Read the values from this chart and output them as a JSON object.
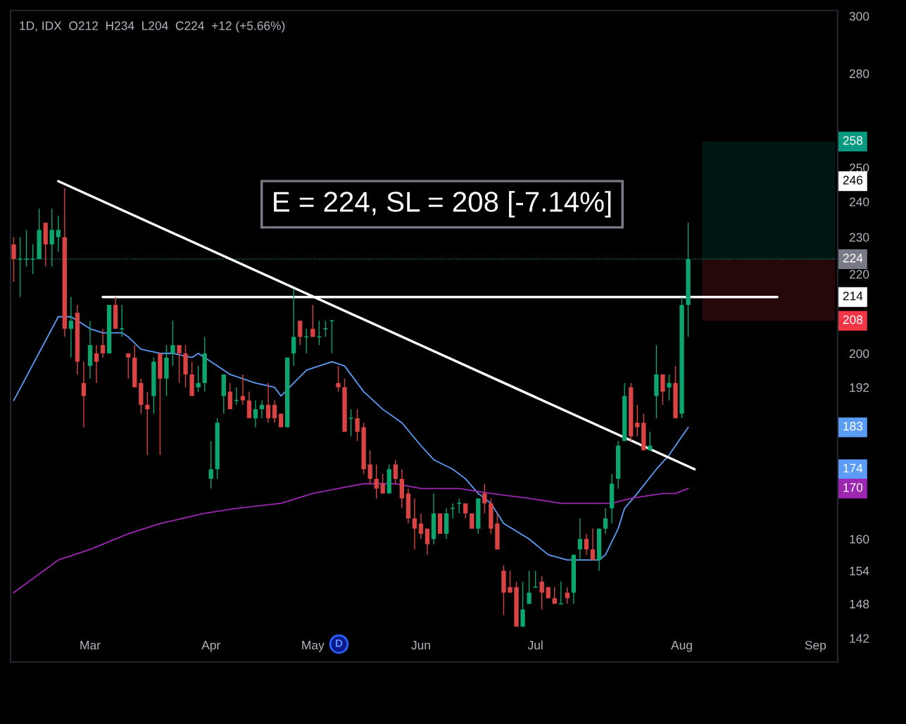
{
  "chart_data": {
    "type": "candlestick",
    "title": "1D, IDX  O212  H234  L204  C224  +12 (+5.66%)",
    "categories": [
      null,
      null,
      null,
      null,
      null,
      null,
      null,
      null,
      null,
      null,
      null,
      null,
      "Mar",
      null,
      null,
      null,
      null,
      null,
      null,
      null,
      null,
      null,
      null,
      null,
      null,
      null,
      null,
      null,
      null,
      null,
      null,
      "Apr",
      null,
      null,
      null,
      null,
      null,
      null,
      null,
      null,
      null,
      null,
      null,
      null,
      null,
      null,
      null,
      "May",
      null,
      null,
      null,
      null,
      null,
      null,
      null,
      null,
      null,
      null,
      null,
      null,
      null,
      null,
      null,
      null,
      "Jun",
      null,
      null,
      null,
      null,
      null,
      null,
      null,
      null,
      null,
      null,
      null,
      null,
      null,
      null,
      null,
      null,
      null,
      "Jul",
      null,
      null,
      null,
      null,
      null,
      null,
      null,
      null,
      null,
      null,
      null,
      null,
      null,
      null,
      null,
      null,
      null,
      null,
      null,
      null,
      null,
      null,
      "Aug",
      null,
      null,
      null,
      null,
      null,
      null,
      null,
      null,
      null,
      null,
      null,
      null,
      null,
      null,
      null,
      null,
      null,
      null,
      null,
      null,
      "Sep",
      null,
      null,
      null
    ],
    "ohlc": [
      [
        228,
        230,
        218,
        224
      ],
      [
        224,
        230,
        214,
        224
      ],
      [
        224,
        232,
        222,
        224
      ],
      [
        224,
        228,
        220,
        224
      ],
      [
        224,
        238,
        224,
        232
      ],
      [
        234,
        234,
        222,
        228
      ],
      [
        228,
        238,
        222,
        232
      ],
      [
        230,
        236,
        226,
        232
      ],
      [
        230,
        244,
        204,
        206
      ],
      [
        206,
        214,
        199,
        208
      ],
      [
        210,
        212,
        195,
        198
      ],
      [
        193,
        198,
        183,
        190
      ],
      [
        197,
        208,
        194,
        202
      ],
      [
        200,
        202,
        193,
        198
      ],
      [
        202,
        206,
        199,
        200
      ],
      [
        200,
        212,
        200,
        212
      ],
      [
        212,
        214,
        206,
        206
      ],
      [
        206,
        212,
        204,
        206
      ],
      [
        200,
        200,
        194,
        199
      ],
      [
        199,
        202,
        192,
        192
      ],
      [
        193,
        194,
        186,
        188
      ],
      [
        188,
        191,
        177,
        187
      ],
      [
        190,
        199,
        186,
        198
      ],
      [
        200,
        200,
        177,
        194
      ],
      [
        194,
        202,
        190,
        199
      ],
      [
        200,
        208,
        197,
        202
      ],
      [
        202,
        202,
        193,
        200
      ],
      [
        200,
        202,
        192,
        195
      ],
      [
        195,
        198,
        190,
        190
      ],
      [
        192,
        197,
        191,
        193
      ],
      [
        193,
        204,
        191,
        200
      ],
      [
        172,
        180,
        170,
        174
      ],
      [
        174,
        185,
        172,
        184
      ],
      [
        190,
        195,
        186,
        195
      ],
      [
        191,
        193,
        187,
        187
      ],
      [
        189,
        192,
        188,
        189
      ],
      [
        190,
        195,
        188,
        189
      ],
      [
        189,
        191,
        185,
        185
      ],
      [
        185,
        189,
        183,
        187
      ],
      [
        187,
        189,
        185,
        188
      ],
      [
        188,
        193,
        184,
        185
      ],
      [
        188,
        189,
        184,
        185
      ],
      [
        186,
        186,
        183,
        183
      ],
      [
        183,
        199,
        183,
        199
      ],
      [
        200,
        216,
        197,
        204
      ],
      [
        208,
        208,
        202,
        204
      ],
      [
        204,
        206,
        200,
        204
      ],
      [
        206,
        212,
        204,
        204
      ],
      [
        204,
        208,
        202,
        204
      ],
      [
        206,
        208,
        204,
        206
      ],
      [
        208,
        208,
        200,
        208
      ],
      [
        193,
        197,
        191,
        192
      ],
      [
        192,
        194,
        182,
        182
      ],
      [
        185,
        187,
        181,
        185
      ],
      [
        185,
        187,
        180,
        182
      ],
      [
        183,
        184,
        173,
        174
      ],
      [
        175,
        178,
        171,
        172
      ],
      [
        172,
        175,
        168,
        170
      ],
      [
        171,
        173,
        169,
        169
      ],
      [
        169,
        175,
        169,
        174
      ],
      [
        175,
        176,
        171,
        172
      ],
      [
        172,
        174,
        166,
        168
      ],
      [
        169,
        170,
        163,
        164
      ],
      [
        164,
        168,
        158,
        162
      ],
      [
        163,
        165,
        160,
        161
      ],
      [
        162,
        162,
        157,
        159
      ],
      [
        160,
        169,
        159,
        165
      ],
      [
        165,
        165,
        161,
        161
      ],
      [
        161,
        166,
        160,
        165
      ],
      [
        166,
        167,
        164,
        166
      ],
      [
        167,
        168,
        165,
        167
      ],
      [
        167,
        167,
        164,
        165
      ],
      [
        165,
        165,
        162,
        162
      ],
      [
        162,
        168,
        161,
        168
      ],
      [
        169,
        171,
        165,
        167
      ],
      [
        167,
        168,
        161,
        162
      ],
      [
        163,
        165,
        158,
        158
      ],
      [
        154,
        155,
        146,
        150
      ],
      [
        151,
        154,
        150,
        150
      ],
      [
        151,
        152,
        144,
        144
      ],
      [
        144,
        152,
        144,
        147
      ],
      [
        148,
        154,
        148,
        150
      ],
      [
        151,
        154,
        151,
        151
      ],
      [
        152,
        153,
        147,
        150
      ],
      [
        151,
        151,
        149,
        149
      ],
      [
        149,
        151,
        148,
        148
      ],
      [
        148,
        152,
        148,
        148
      ],
      [
        150,
        151,
        148,
        149
      ],
      [
        150,
        157,
        148,
        157
      ],
      [
        158,
        164,
        156,
        160
      ],
      [
        160,
        161,
        157,
        158
      ],
      [
        158,
        162,
        156,
        156
      ],
      [
        156,
        162,
        154,
        162
      ],
      [
        162,
        166,
        161,
        164
      ],
      [
        166,
        173,
        163,
        171
      ],
      [
        172,
        180,
        170,
        179
      ],
      [
        180,
        193,
        180,
        190
      ],
      [
        192,
        193,
        180,
        181
      ],
      [
        184,
        188,
        181,
        183
      ],
      [
        184,
        186,
        178,
        178
      ],
      [
        178,
        182,
        178,
        179
      ],
      [
        190,
        202,
        185,
        195
      ],
      [
        195,
        195,
        188,
        191
      ],
      [
        192,
        195,
        189,
        193
      ],
      [
        193,
        197,
        185,
        185
      ],
      [
        186,
        214,
        185,
        212
      ],
      [
        212,
        234,
        204,
        224
      ],
      null,
      null,
      null,
      null,
      null,
      null,
      null,
      null,
      null,
      null,
      null,
      null,
      null,
      null,
      null,
      null,
      null,
      null,
      null,
      null,
      null,
      null,
      null
    ],
    "colors": [
      "#d94343",
      "#0ca56e",
      "#0ca56e",
      "#0ca56e",
      "#0ca56e",
      "#d94343",
      "#0ca56e",
      "#0ca56e",
      "#d94343",
      "#0ca56e",
      "#d94343",
      "#d94343",
      "#0ca56e",
      "#d94343",
      "#d94343",
      "#0ca56e",
      "#d94343",
      "#0ca56e",
      "#d94343",
      "#d94343",
      "#d94343",
      "#d94343",
      "#0ca56e",
      "#d94343",
      "#0ca56e",
      "#0ca56e",
      "#d94343",
      "#d94343",
      "#d94343",
      "#0ca56e",
      "#0ca56e",
      "#0ca56e",
      "#0ca56e",
      "#0ca56e",
      "#d94343",
      "#0ca56e",
      "#d94343",
      "#d94343",
      "#0ca56e",
      "#0ca56e",
      "#d94343",
      "#d94343",
      "#d94343",
      "#0ca56e",
      "#0ca56e",
      "#d94343",
      "#0ca56e",
      "#d94343",
      "#0ca56e",
      "#0ca56e",
      "#0ca56e",
      "#d94343",
      "#d94343",
      "#0ca56e",
      "#d94343",
      "#d94343",
      "#d94343",
      "#d94343",
      "#d94343",
      "#0ca56e",
      "#d94343",
      "#d94343",
      "#d94343",
      "#d94343",
      "#d94343",
      "#d94343",
      "#0ca56e",
      "#d94343",
      "#0ca56e",
      "#0ca56e",
      "#0ca56e",
      "#d94343",
      "#d94343",
      "#0ca56e",
      "#d94343",
      "#d94343",
      "#d94343",
      "#d94343",
      "#d94343",
      "#d94343",
      "#0ca56e",
      "#0ca56e",
      "#0ca56e",
      "#d94343",
      "#d94343",
      "#d94343",
      "#0ca56e",
      "#d94343",
      "#0ca56e",
      "#0ca56e",
      "#d94343",
      "#d94343",
      "#0ca56e",
      "#0ca56e",
      "#0ca56e",
      "#0ca56e",
      "#0ca56e",
      "#d94343",
      "#d94343",
      "#d94343",
      "#0ca56e",
      "#0ca56e",
      "#d94343",
      "#0ca56e",
      "#d94343",
      "#0ca56e",
      "#0ca56e",
      null,
      null,
      null,
      null,
      null,
      null,
      null,
      null,
      null,
      null,
      null,
      null,
      null,
      null,
      null,
      null,
      null,
      null,
      null,
      null,
      null,
      null,
      null
    ],
    "series": [
      {
        "type": "line",
        "color": "#5b9cf6",
        "values": [
          189,
          null,
          null,
          null,
          null,
          null,
          null,
          209,
          null,
          209,
          null,
          207,
          206,
          null,
          205,
          null,
          null,
          205,
          204,
          null,
          201,
          null,
          null,
          200,
          null,
          200,
          null,
          null,
          199,
          200,
          null,
          null,
          197,
          null,
          195,
          null,
          null,
          null,
          193,
          null,
          null,
          192,
          190,
          null,
          193,
          null,
          196,
          null,
          null,
          null,
          198,
          null,
          197,
          null,
          null,
          191,
          null,
          null,
          187,
          null,
          null,
          184,
          null,
          null,
          179,
          null,
          176,
          null,
          null,
          174,
          null,
          172,
          null,
          169,
          null,
          167,
          null,
          163,
          null,
          null,
          null,
          160,
          null,
          null,
          157,
          null,
          null,
          156,
          null,
          null,
          156,
          null,
          156,
          157,
          null,
          162,
          166,
          null,
          169,
          null,
          null,
          174,
          null,
          177,
          null,
          null,
          183,
          null,
          null,
          null,
          null,
          null,
          null,
          null,
          null,
          null,
          null,
          null,
          null,
          null,
          null,
          null,
          null,
          null,
          null,
          null,
          null,
          null,
          null,
          null
        ]
      },
      {
        "type": "line",
        "color": "#9c27b0",
        "values": [
          150,
          null,
          null,
          null,
          null,
          null,
          null,
          156,
          null,
          null,
          null,
          null,
          158,
          null,
          null,
          null,
          null,
          null,
          161,
          null,
          null,
          null,
          null,
          163,
          null,
          null,
          null,
          null,
          null,
          null,
          165,
          null,
          null,
          null,
          null,
          166,
          null,
          null,
          null,
          null,
          null,
          null,
          167,
          null,
          null,
          null,
          null,
          169,
          null,
          null,
          null,
          170,
          null,
          null,
          null,
          171,
          null,
          null,
          null,
          null,
          171,
          null,
          null,
          null,
          170,
          null,
          null,
          null,
          null,
          null,
          170,
          null,
          null,
          null,
          null,
          169,
          null,
          null,
          null,
          null,
          null,
          168,
          null,
          null,
          null,
          null,
          167,
          null,
          null,
          null,
          167,
          null,
          null,
          null,
          167,
          null,
          null,
          168,
          null,
          null,
          null,
          null,
          169,
          null,
          169,
          null,
          170,
          null,
          null,
          null,
          null,
          null,
          null,
          null,
          null,
          null,
          null,
          null,
          null,
          null,
          null,
          null,
          null,
          null,
          null,
          null,
          null,
          null,
          null,
          null
        ]
      },
      {
        "type": "line",
        "color": "#ffffff",
        "values": [
          null,
          null,
          null,
          null,
          null,
          null,
          null,
          246,
          null,
          null,
          null,
          null,
          null,
          null,
          null,
          null,
          null,
          null,
          null,
          null,
          null,
          null,
          null,
          null,
          null,
          null,
          null,
          null,
          null,
          null,
          null,
          null,
          null,
          null,
          null,
          null,
          null,
          null,
          null,
          null,
          null,
          null,
          null,
          null,
          null,
          null,
          null,
          null,
          null,
          null,
          null,
          null,
          null,
          null,
          null,
          null,
          null,
          null,
          null,
          null,
          null,
          null,
          null,
          null,
          null,
          null,
          null,
          null,
          null,
          null,
          null,
          null,
          null,
          null,
          null,
          null,
          null,
          null,
          null,
          null,
          null,
          null,
          null,
          null,
          null,
          null,
          null,
          null,
          null,
          null,
          null,
          null,
          null,
          null,
          null,
          null,
          null,
          null,
          null,
          null,
          null,
          null,
          null,
          null,
          null,
          null,
          null,
          174,
          null,
          null,
          null,
          null,
          null,
          null,
          null,
          null,
          null,
          null,
          null,
          null,
          null,
          null,
          null,
          null,
          null,
          null,
          null,
          null,
          null,
          null
        ]
      },
      {
        "type": "line",
        "color": "#ffffff",
        "values": [
          null,
          null,
          null,
          null,
          null,
          null,
          null,
          null,
          null,
          null,
          null,
          null,
          null,
          null,
          214,
          null,
          null,
          null,
          null,
          null,
          null,
          null,
          null,
          null,
          null,
          null,
          null,
          null,
          null,
          null,
          null,
          null,
          null,
          null,
          null,
          null,
          null,
          null,
          null,
          null,
          null,
          null,
          null,
          null,
          null,
          null,
          null,
          null,
          null,
          null,
          null,
          null,
          null,
          null,
          null,
          null,
          null,
          null,
          null,
          null,
          null,
          null,
          null,
          null,
          null,
          null,
          null,
          null,
          null,
          null,
          null,
          null,
          null,
          null,
          null,
          null,
          null,
          null,
          null,
          null,
          null,
          null,
          null,
          null,
          null,
          null,
          null,
          null,
          null,
          null,
          null,
          null,
          null,
          null,
          null,
          null,
          null,
          null,
          null,
          null,
          null,
          null,
          null,
          null,
          null,
          null,
          null,
          null,
          null,
          null,
          null,
          null,
          null,
          null,
          null,
          null,
          null,
          null,
          null,
          null,
          214,
          null,
          null,
          null,
          null,
          null,
          null,
          null,
          null,
          null
        ]
      }
    ],
    "bands": [
      {
        "axis": "y",
        "from": 224,
        "to": 258,
        "color": "#089981"
      },
      {
        "axis": "y",
        "from": 208,
        "to": 224,
        "color": "#f23645"
      }
    ],
    "ref_lines": [
      {
        "axis": "y",
        "value": 224,
        "label": "224",
        "color": "#089981",
        "line_style": "dotted"
      }
    ],
    "annotations": [
      "E = 224, SL = 208 [-7.14%]",
      {
        "text": "D",
        "y": 141
      },
      {
        "text": "258",
        "y": 258
      },
      {
        "text": "246",
        "y": 246
      },
      {
        "text": "214",
        "y": 214
      },
      {
        "text": "208",
        "y": 208
      },
      {
        "text": "183",
        "y": 183
      },
      {
        "text": "174",
        "y": 174
      },
      {
        "text": "170",
        "y": 170
      }
    ],
    "log": "y",
    "grid": false,
    "ylim": [
      138,
      302
    ],
    "yticks": [
      142,
      148,
      154,
      160,
      192,
      200,
      220,
      230,
      240,
      250,
      280,
      300
    ]
  }
}
